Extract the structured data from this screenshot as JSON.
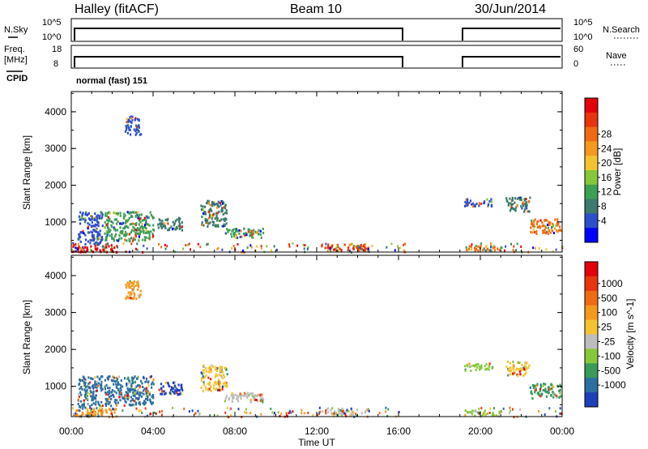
{
  "header": {
    "station": "Halley (fitACF)",
    "beam": "Beam 10",
    "date": "30/Jun/2014",
    "left_labels": {
      "nsky": "N.Sky",
      "freq1": "Freq.",
      "freq2": "[MHz]",
      "cpid": "CPID"
    },
    "right_labels": {
      "nsearch": "N.Search",
      "nave": "Nave"
    },
    "nsky_ticks": [
      "10^5",
      "10^0"
    ],
    "nsearch_ticks": [
      "10^5",
      "10^0"
    ],
    "freq_ticks": [
      "18",
      "8"
    ],
    "nave_ticks": [
      "60",
      "0"
    ],
    "cpid_text": "normal (fast) 151"
  },
  "chart_data": [
    {
      "type": "heatmap",
      "panel": "power",
      "ylabel": "Slant Range [km]",
      "ylim": [
        180,
        4550
      ],
      "yticks": [
        "1000",
        "2000",
        "3000",
        "4000"
      ],
      "xticks": [
        "00:00",
        "04:00",
        "08:00",
        "12:00",
        "16:00",
        "20:00",
        "00:00"
      ],
      "xlabel": "",
      "colorbar": {
        "label": "Power [dB]",
        "ticks": [
          "4",
          "8",
          "12",
          "16",
          "20",
          "24",
          "28"
        ],
        "colors": [
          "#0000ff",
          "#2d4ec9",
          "#3b7a6d",
          "#3f9f55",
          "#86c83a",
          "#f4c430",
          "#f39a1d",
          "#ef6b12",
          "#e8350d",
          "#e3000b"
        ]
      },
      "data_gaps_ut_hours": [
        [
          16.3,
          19.2
        ]
      ],
      "regions": [
        {
          "t": [
            0.0,
            2.2
          ],
          "r": [
            200,
            420
          ],
          "c": "#e3000b"
        },
        {
          "t": [
            0.3,
            1.5
          ],
          "r": [
            420,
            1300
          ],
          "c": "#2d4ec9"
        },
        {
          "t": [
            1.6,
            4.0
          ],
          "r": [
            500,
            1300
          ],
          "c": "#3f9f55"
        },
        {
          "t": [
            2.6,
            3.4
          ],
          "r": [
            3400,
            3900
          ],
          "c": "#2d4ec9"
        },
        {
          "t": [
            4.2,
            5.4
          ],
          "r": [
            800,
            1150
          ],
          "c": "#3b7a6d"
        },
        {
          "t": [
            6.3,
            7.6
          ],
          "r": [
            900,
            1600
          ],
          "c": "#3b7a6d"
        },
        {
          "t": [
            7.4,
            9.4
          ],
          "r": [
            600,
            850
          ],
          "c": "#3f9f55"
        },
        {
          "t": [
            12.2,
            14.5
          ],
          "r": [
            250,
            420
          ],
          "c": "#e8350d"
        },
        {
          "t": [
            19.2,
            21.0
          ],
          "r": [
            230,
            380
          ],
          "c": "#ef6b12"
        },
        {
          "t": [
            19.2,
            20.6
          ],
          "r": [
            1450,
            1650
          ],
          "c": "#2d4ec9"
        },
        {
          "t": [
            21.2,
            22.4
          ],
          "r": [
            1300,
            1700
          ],
          "c": "#3b7a6d"
        },
        {
          "t": [
            22.4,
            23.9
          ],
          "r": [
            700,
            1100
          ],
          "c": "#ef6b12"
        }
      ]
    },
    {
      "type": "heatmap",
      "panel": "velocity",
      "ylabel": "Slant Range [km]",
      "ylim": [
        180,
        4550
      ],
      "yticks": [
        "1000",
        "2000",
        "3000",
        "4000"
      ],
      "xticks": [
        "00:00",
        "04:00",
        "08:00",
        "12:00",
        "16:00",
        "20:00",
        "00:00"
      ],
      "xlabel": "Time UT",
      "colorbar": {
        "label": "Velocity [m s^-1]",
        "ticks": [
          "1000",
          "500",
          "100",
          "25",
          "-25",
          "-100",
          "-500",
          "-1000"
        ],
        "colors": [
          "#1f3fb8",
          "#2d6fa0",
          "#3a9a5a",
          "#86c83a",
          "#bdbdbd",
          "#f4c430",
          "#f39a1d",
          "#ef6b12",
          "#e8350d",
          "#e3000b"
        ]
      },
      "data_gaps_ut_hours": [
        [
          16.3,
          19.2
        ]
      ],
      "regions": [
        {
          "t": [
            0.0,
            2.2
          ],
          "r": [
            200,
            420
          ],
          "c": "#f39a1d"
        },
        {
          "t": [
            0.3,
            1.5
          ],
          "r": [
            420,
            1300
          ],
          "c": "#2d6fa0"
        },
        {
          "t": [
            1.6,
            4.0
          ],
          "r": [
            500,
            1300
          ],
          "c": "#2d6fa0"
        },
        {
          "t": [
            2.6,
            3.4
          ],
          "r": [
            3400,
            3900
          ],
          "c": "#f39a1d"
        },
        {
          "t": [
            4.2,
            5.4
          ],
          "r": [
            800,
            1150
          ],
          "c": "#1f3fb8"
        },
        {
          "t": [
            6.3,
            7.6
          ],
          "r": [
            900,
            1600
          ],
          "c": "#f4c430"
        },
        {
          "t": [
            7.4,
            9.4
          ],
          "r": [
            600,
            850
          ],
          "c": "#bdbdbd"
        },
        {
          "t": [
            12.2,
            14.5
          ],
          "r": [
            250,
            420
          ],
          "c": "#bdbdbd"
        },
        {
          "t": [
            19.2,
            21.0
          ],
          "r": [
            230,
            380
          ],
          "c": "#86c83a"
        },
        {
          "t": [
            19.2,
            20.6
          ],
          "r": [
            1450,
            1650
          ],
          "c": "#86c83a"
        },
        {
          "t": [
            21.2,
            22.4
          ],
          "r": [
            1300,
            1700
          ],
          "c": "#f4c430"
        },
        {
          "t": [
            22.4,
            23.9
          ],
          "r": [
            700,
            1100
          ],
          "c": "#3a9a5a"
        }
      ]
    }
  ]
}
